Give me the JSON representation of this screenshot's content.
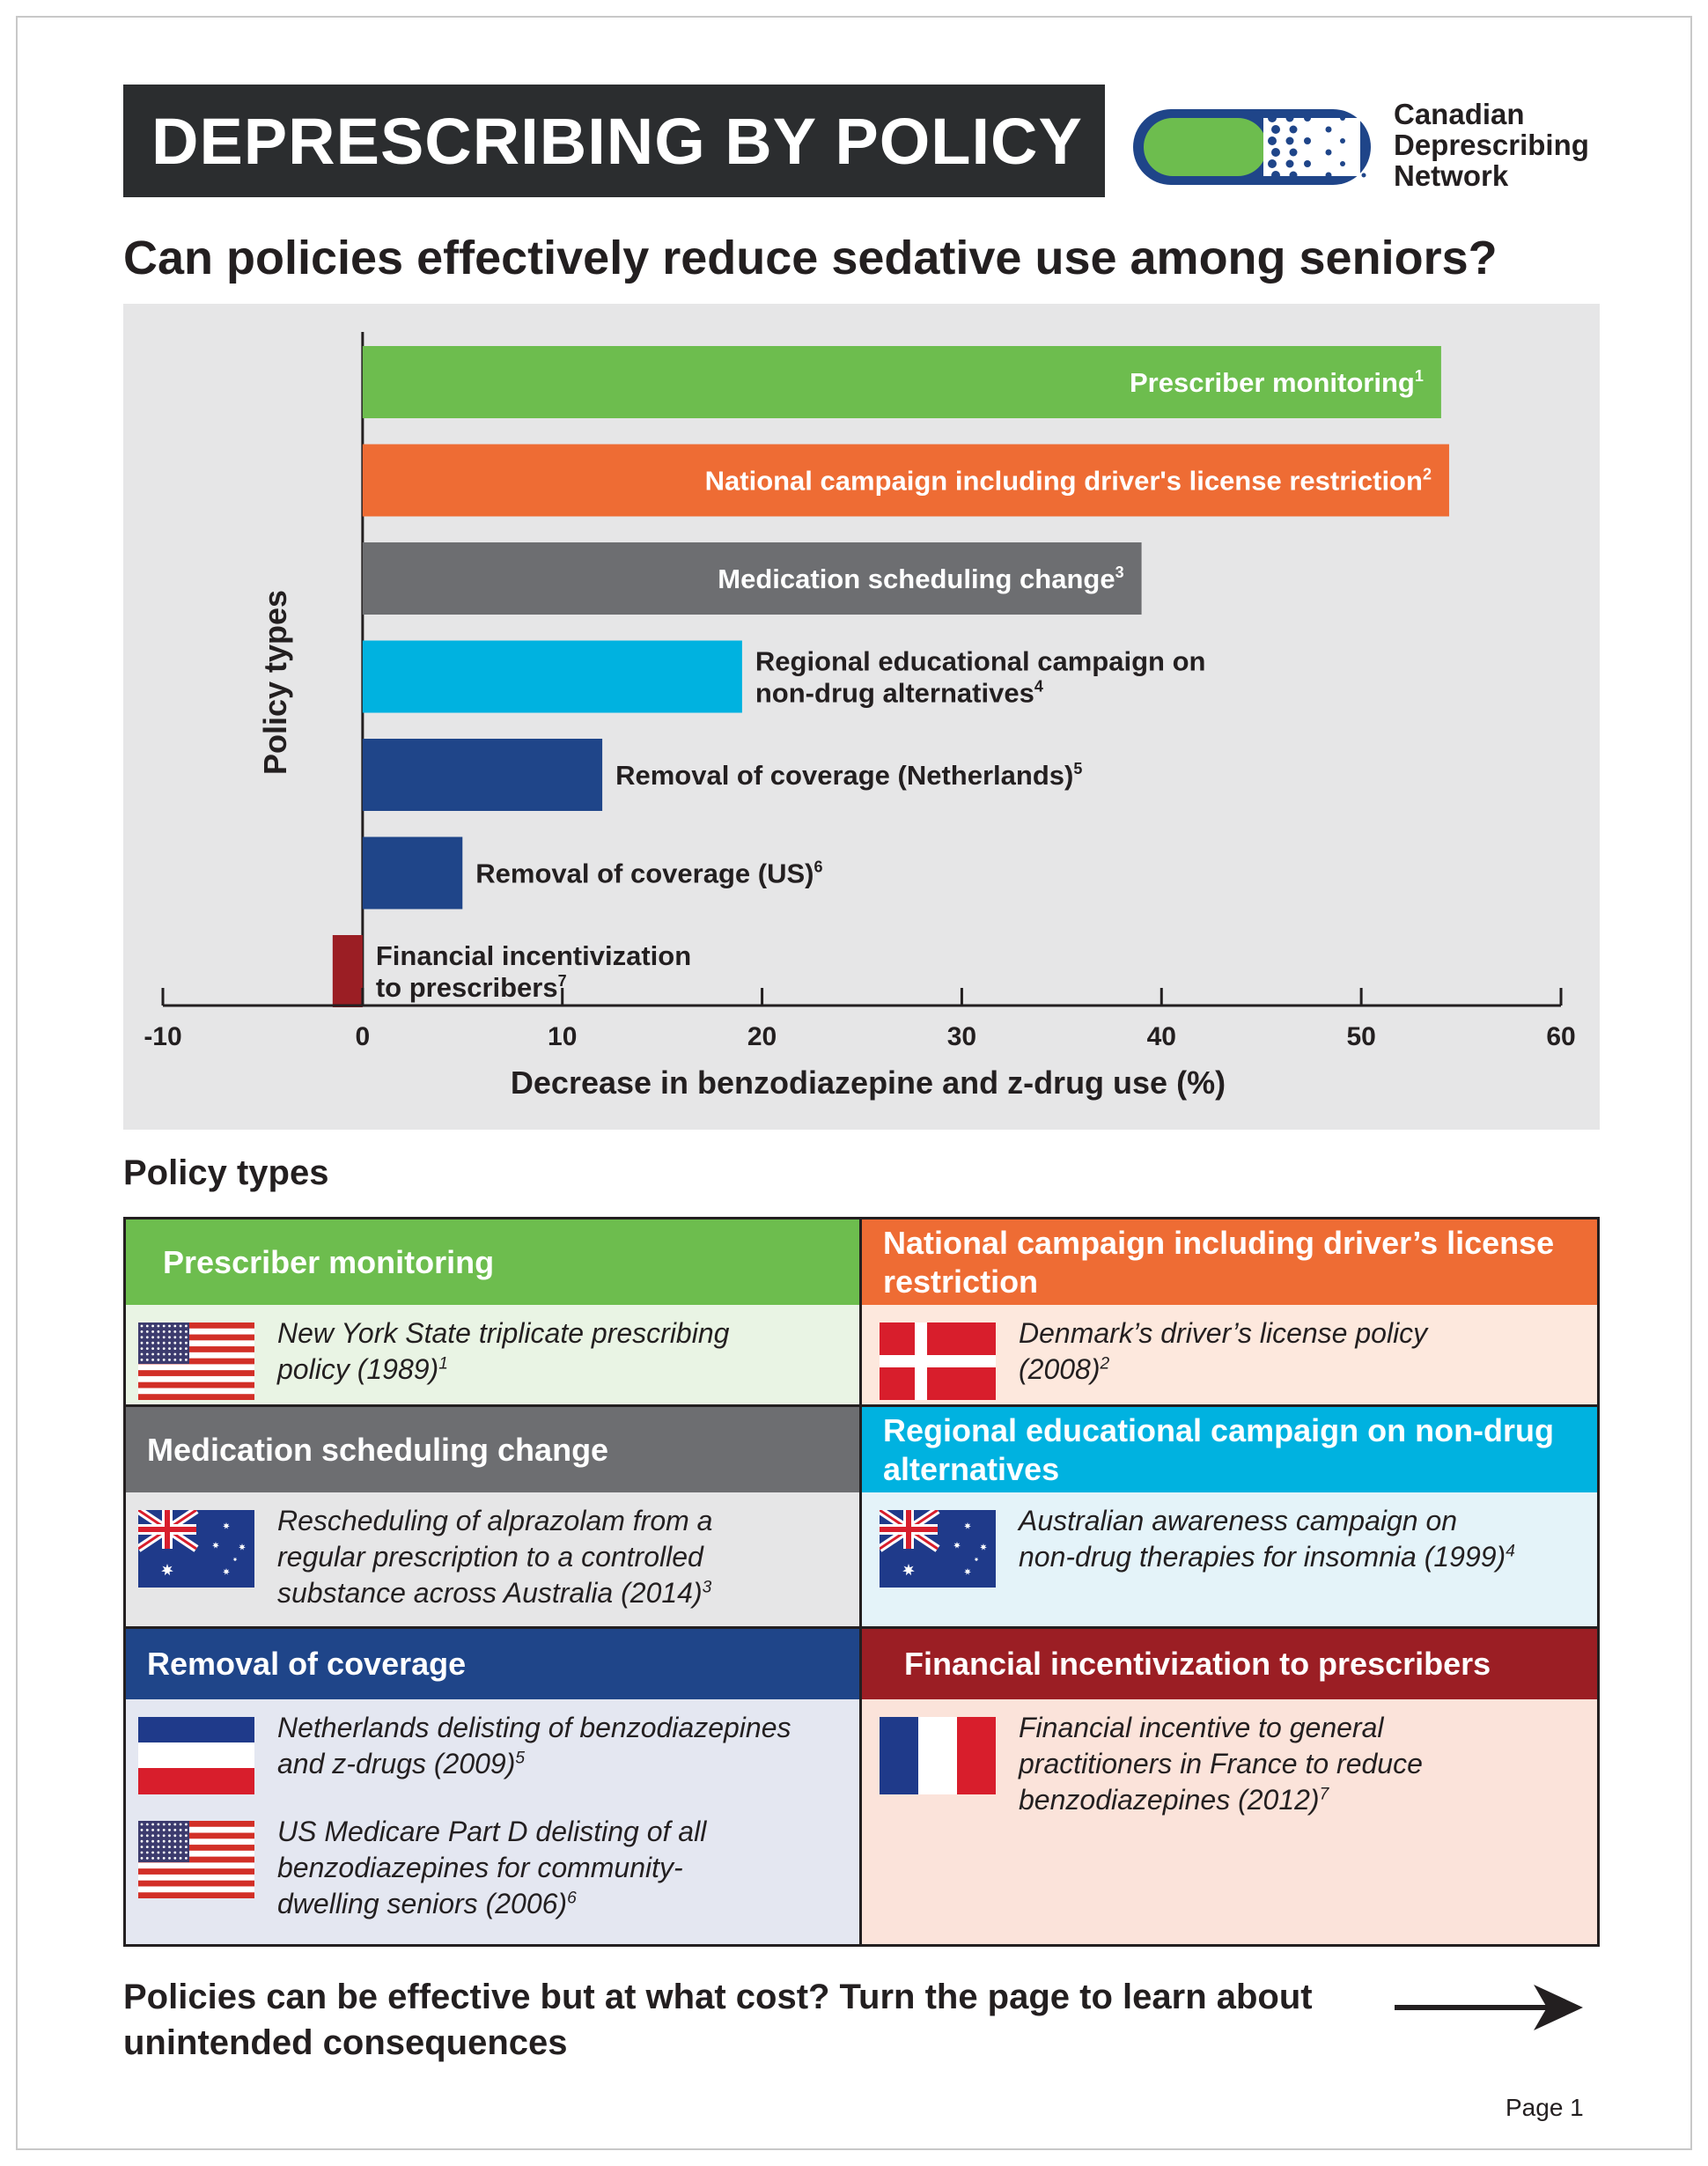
{
  "header": {
    "title": "DEPRESCRIBING BY POLICY",
    "logo_text": [
      "Canadian",
      "Deprescribing",
      "Network"
    ]
  },
  "subtitle": "Can policies effectively reduce sedative use among seniors?",
  "colors": {
    "green": "#6dbd4e",
    "orange": "#ee6c34",
    "gray": "#6d6e71",
    "cyan": "#00b2e0",
    "navy": "#1f4589",
    "maroon": "#9b1e24"
  },
  "chart_data": {
    "type": "bar",
    "orientation": "horizontal",
    "ylabel": "Policy types",
    "xlabel": "Decrease in benzodiazepine and z-drug use (%)",
    "xlim": [
      -10,
      60
    ],
    "xticks": [
      -10,
      0,
      10,
      20,
      30,
      40,
      50,
      60
    ],
    "grid": false,
    "categories": [
      "Prescriber monitoring",
      "National campaign including driver's license restriction",
      "Medication scheduling change",
      "Regional educational campaign on non-drug alternatives",
      "Removal of coverage (Netherlands)",
      "Removal of coverage (US)",
      "Financial incentivization to prescribers"
    ],
    "values": [
      54,
      54.4,
      39,
      19,
      12,
      5,
      -1.5
    ],
    "references": [
      "1",
      "2",
      "3",
      "4",
      "5",
      "6",
      "7"
    ],
    "bar_colors": [
      "#6dbd4e",
      "#ee6c34",
      "#6d6e71",
      "#00b2e0",
      "#1f4589",
      "#1f4589",
      "#9b1e24"
    ],
    "label_lines": [
      [
        "Prescriber monitoring"
      ],
      [
        "National campaign including driver's license restriction"
      ],
      [
        "Medication scheduling change"
      ],
      [
        "Regional educational campaign on",
        "non-drug alternatives"
      ],
      [
        "Removal of coverage (Netherlands)"
      ],
      [
        "Removal of coverage (US)"
      ],
      [
        "Financial incentivization",
        "to prescribers"
      ]
    ],
    "label_inside": [
      true,
      true,
      true,
      false,
      false,
      false,
      false
    ]
  },
  "policy_section": {
    "heading": "Policy types",
    "cells": [
      {
        "title": "Prescriber monitoring",
        "color": "#6dbd4e",
        "bg": "#e9f4e4",
        "entries": [
          {
            "flag": "us",
            "lines": [
              "New York State triplicate prescribing",
              "policy (1989)"
            ],
            "ref": "1"
          }
        ]
      },
      {
        "title": "National campaign including driver’s license restriction",
        "color": "#ee6c34",
        "bg": "#fde8dd",
        "entries": [
          {
            "flag": "dk",
            "lines": [
              "Denmark’s driver’s license policy",
              "(2008)"
            ],
            "ref": "2"
          }
        ]
      },
      {
        "title": "Medication scheduling change",
        "color": "#6d6e71",
        "bg": "#e6e6e7",
        "entries": [
          {
            "flag": "au",
            "lines": [
              "Rescheduling of alprazolam from a",
              "regular prescription to a controlled",
              "substance across Australia (2014)"
            ],
            "ref": "3"
          }
        ]
      },
      {
        "title": "Regional educational campaign on non-drug alternatives",
        "color": "#00b2e0",
        "bg": "#e4f3f9",
        "entries": [
          {
            "flag": "au",
            "lines": [
              "Australian awareness campaign on",
              "non-drug therapies for insomnia (1999)"
            ],
            "ref": "4"
          }
        ]
      },
      {
        "title": "Removal of coverage",
        "color": "#1f4589",
        "bg": "#e4e7f1",
        "entries": [
          {
            "flag": "nl",
            "lines": [
              "Netherlands delisting of benzodiazepines",
              "and z-drugs (2009)"
            ],
            "ref": "5"
          },
          {
            "flag": "us",
            "lines": [
              "US Medicare Part D delisting of all",
              "benzodiazepines for community-",
              "dwelling seniors (2006)"
            ],
            "ref": "6"
          }
        ]
      },
      {
        "title": "Financial incentivization to prescribers",
        "color": "#9b1e24",
        "bg": "#fbe3da",
        "entries": [
          {
            "flag": "fr",
            "lines": [
              "Financial incentive to general",
              "practitioners in France to reduce",
              "benzodiazepines (2012)"
            ],
            "ref": "7"
          }
        ]
      }
    ]
  },
  "footer": {
    "text": "Policies can be effective but at what cost? Turn the page to learn about unintended consequences",
    "page_label": "Page 1"
  }
}
